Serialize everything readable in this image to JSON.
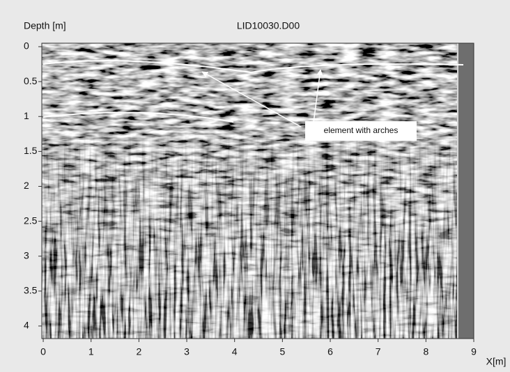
{
  "chart_data": {
    "type": "radargram",
    "title": "LID10030.D00",
    "y_label": "Depth [m]",
    "x_label": "X[m]",
    "annotation": "element with arches",
    "xlim": [
      -0.03,
      9
    ],
    "ylim": [
      -0.05,
      4.18
    ],
    "y_inverted": true,
    "xticks": [
      0,
      1,
      2,
      3,
      4,
      5,
      6,
      7,
      8,
      9
    ],
    "yticks": [
      0,
      0.5,
      1,
      1.5,
      2,
      2.5,
      3,
      3.5,
      4
    ]
  }
}
